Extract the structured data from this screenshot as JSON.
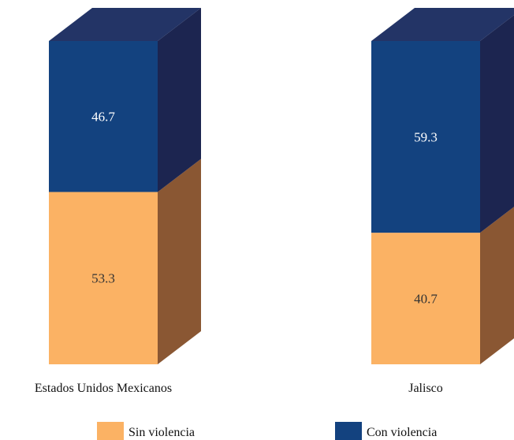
{
  "chart_data": {
    "type": "bar",
    "stacked": true,
    "percent_stacked": true,
    "style": "3d-columns",
    "categories": [
      "Estados Unidos Mexicanos",
      "Jalisco"
    ],
    "series": [
      {
        "name": "Sin violencia",
        "values": [
          53.3,
          40.7
        ],
        "color": "#fbb264",
        "side_color": "#8a5733"
      },
      {
        "name": "Con violencia",
        "values": [
          46.7,
          59.3
        ],
        "color": "#13427f",
        "side_color": "#1c2550",
        "top_color": "#233466"
      }
    ],
    "ylim": [
      0,
      100
    ],
    "grid": false,
    "legend": "bottom"
  }
}
